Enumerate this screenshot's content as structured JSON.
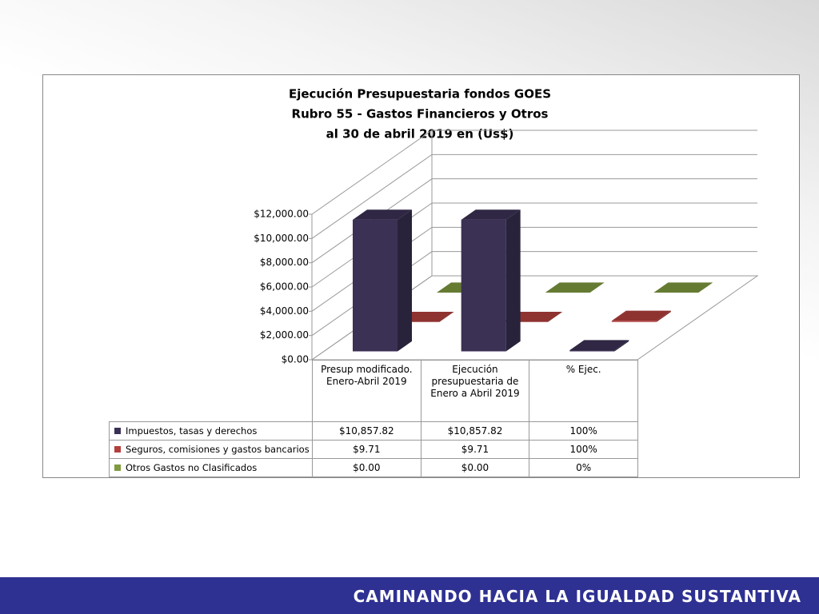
{
  "chart_data": {
    "type": "bar3d",
    "title": [
      "Ejecución Presupuestaria fondos GOES",
      "Rubro 55 - Gastos Financieros y Otros",
      "al 30 de abril 2019 en (Us$)"
    ],
    "categories": [
      "Presup modificado. Enero-Abril 2019",
      "Ejecución presupuestaria de Enero a Abril 2019",
      "% Ejec."
    ],
    "series": [
      {
        "name": "Impuestos, tasas y derechos",
        "color": "#3b3154",
        "values": [
          10857.82,
          10857.82,
          100
        ],
        "value_labels": [
          "$10,857.82",
          "$10,857.82",
          "100%"
        ]
      },
      {
        "name": "Seguros, comisiones y gastos bancarios",
        "color": "#b3403d",
        "values": [
          9.71,
          9.71,
          100
        ],
        "value_labels": [
          "$9.71",
          "$9.71",
          "100%"
        ]
      },
      {
        "name": "Otros Gastos no Clasificados",
        "color": "#7f9a3f",
        "values": [
          0,
          0,
          0
        ],
        "value_labels": [
          "$0.00",
          "$0.00",
          "0%"
        ]
      }
    ],
    "ylim": [
      0,
      12000
    ],
    "yticks": [
      {
        "value": 0,
        "label": "$0.00"
      },
      {
        "value": 2000,
        "label": "$2,000.00"
      },
      {
        "value": 4000,
        "label": "$4,000.00"
      },
      {
        "value": 6000,
        "label": "$6,000.00"
      },
      {
        "value": 8000,
        "label": "$8,000.00"
      },
      {
        "value": 10000,
        "label": "$10,000.00"
      },
      {
        "value": 12000,
        "label": "$12,000.00"
      }
    ],
    "grid": true
  },
  "footer": {
    "text": "CAMINANDO HACIA LA IGUALDAD SUSTANTIVA"
  }
}
